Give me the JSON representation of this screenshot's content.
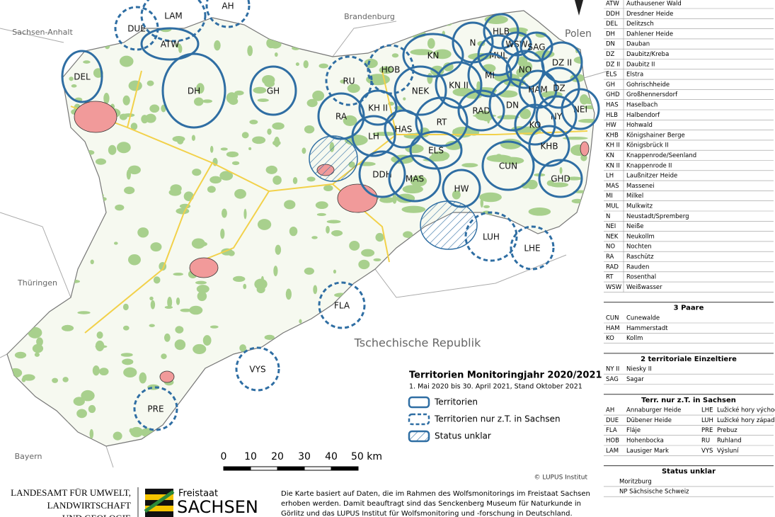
{
  "map": {
    "regions": [
      "Sachsen-Anhalt",
      "Brandenburg",
      "Polen",
      "Thüringen",
      "Bayern",
      "Tschechische Republik"
    ],
    "territories": [
      "DUE",
      "LAM",
      "AH",
      "ATW",
      "DEL",
      "DH",
      "GH",
      "RU",
      "HOB",
      "KN",
      "N",
      "HLB",
      "WSW",
      "SAG",
      "MUL",
      "NO",
      "DZ II",
      "MI",
      "NEK",
      "KN II",
      "KH II",
      "RA",
      "HAS",
      "RT",
      "RAD",
      "DN",
      "HAM",
      "DZ",
      "NEI",
      "NY",
      "KO",
      "LH",
      "ELS",
      "KHB",
      "DDH",
      "MAS",
      "CUN",
      "GHD",
      "HW",
      "LUH",
      "LHE",
      "FLA",
      "VYS",
      "PRE"
    ],
    "copyright": "© LUPUS Institut"
  },
  "legend": {
    "title": "Territorien Monitoringjahr 2020/2021",
    "subtitle": "1. Mai 2020 bis 30. April 2021, Stand Oktober 2021",
    "items": [
      "Territorien",
      "Territorien nur z.T. in Sachsen",
      "Status unklar"
    ]
  },
  "scale": {
    "labels": [
      "0",
      "10",
      "20",
      "30",
      "40",
      "50 km"
    ]
  },
  "table": {
    "territories": [
      [
        "ATW",
        "Authausener Wald"
      ],
      [
        "DDH",
        "Dresdner Heide"
      ],
      [
        "DEL",
        "Delitzsch"
      ],
      [
        "DH",
        "Dahlener Heide"
      ],
      [
        "DN",
        "Dauban"
      ],
      [
        "DZ",
        "Daubitz/Kreba"
      ],
      [
        "DZ II",
        "Daubitz II"
      ],
      [
        "ELS",
        "Elstra"
      ],
      [
        "GH",
        "Gohrischheide"
      ],
      [
        "GHD",
        "Großhennersdorf"
      ],
      [
        "HAS",
        "Haselbach"
      ],
      [
        "HLB",
        "Halbendorf"
      ],
      [
        "HW",
        "Hohwald"
      ],
      [
        "KHB",
        "Königshainer Berge"
      ],
      [
        "KH II",
        "Königsbrück II"
      ],
      [
        "KN",
        "Knappenrode/Seenland"
      ],
      [
        "KN II",
        "Knappenrode II"
      ],
      [
        "LH",
        "Laußnitzer Heide"
      ],
      [
        "MAS",
        "Massenei"
      ],
      [
        "MI",
        "Milkel"
      ],
      [
        "MUL",
        "Mulkwitz"
      ],
      [
        "N",
        "Neustadt/Spremberg"
      ],
      [
        "NEI",
        "Neiße"
      ],
      [
        "NEK",
        "Neukollm"
      ],
      [
        "NO",
        "Nochten"
      ],
      [
        "RA",
        "Raschütz"
      ],
      [
        "RAD",
        "Rauden"
      ],
      [
        "RT",
        "Rosenthal"
      ],
      [
        "WSW",
        "Weißwasser"
      ]
    ],
    "sections": [
      {
        "title": "3 Paare",
        "rows": [
          [
            "CUN",
            "Cunewalde"
          ],
          [
            "HAM",
            "Hammerstadt"
          ],
          [
            "KO",
            "Kollm"
          ]
        ]
      },
      {
        "title": "2 territoriale Einzeltiere",
        "rows": [
          [
            "NY II",
            "Niesky II"
          ],
          [
            "SAG",
            "Sagar"
          ]
        ]
      },
      {
        "title": "Terr. nur z.T. in Sachsen",
        "rows": [
          [
            "AH",
            "Annaburger Heide",
            "LHE",
            "Lužické hory východ"
          ],
          [
            "DUE",
            "Dübener Heide",
            "LUH",
            "Lužické hory západ"
          ],
          [
            "FLA",
            "Fláje",
            "PRE",
            "Prebuz"
          ],
          [
            "HOB",
            "Hohenbocka",
            "RU",
            "Ruhland"
          ],
          [
            "LAM",
            "Lausiger Mark",
            "VYS",
            "Výsluní"
          ]
        ]
      },
      {
        "title": "Status unklar",
        "rows": [
          [
            "",
            "Moritzburg"
          ],
          [
            "",
            "NP Sächsische Schweiz"
          ]
        ]
      }
    ]
  },
  "footer": {
    "agency": [
      "LANDESAMT FÜR UMWELT,",
      "LANDWIRTSCHAFT",
      "UND GEOLOGIE"
    ],
    "state_small": "Freistaat",
    "state_big": "SACHSEN",
    "note": [
      "Die Karte basiert auf Daten, die im Rahmen des Wolfsmonitorings im Freistaat Sachsen",
      "erhoben werden. Damit beauftragt sind das Senckenberg Museum für Naturkunde in",
      "Görlitz und das LUPUS Institut für Wolfsmonitoring und -forschung in Deutschland."
    ]
  }
}
